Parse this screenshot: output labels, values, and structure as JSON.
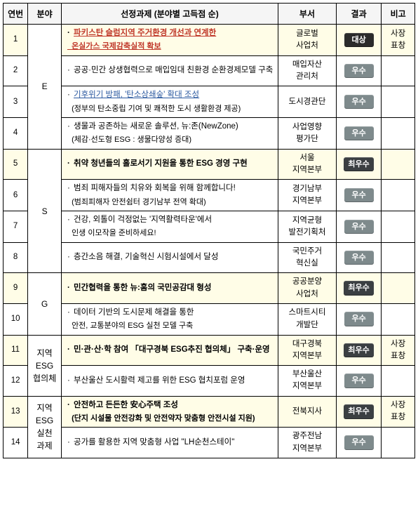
{
  "headers": {
    "no": "연번",
    "field": "분야",
    "task": "선정과제 (분야별 고득점 순)",
    "dept": "부서",
    "result": "결과",
    "note": "비고"
  },
  "col_widths": {
    "no": 34,
    "field": 46,
    "task": 298,
    "dept": 80,
    "result": 62,
    "note": 46
  },
  "badge_styles": {
    "대상": {
      "bg": "#2b2b2b",
      "class": "badge-dark"
    },
    "최우수": {
      "bg": "#3b3f42",
      "class": "badge-strong"
    },
    "우수": {
      "bg": "#7e8a8c",
      "class": "badge-gray"
    }
  },
  "field_groups": [
    {
      "label": "E",
      "span": 4
    },
    {
      "label": "S",
      "span": 4
    },
    {
      "label": "G",
      "span": 2
    },
    {
      "label": "지역\nESG\n협의체",
      "span": 2
    },
    {
      "label": "지역\nESG\n실천\n과제",
      "span": 2
    }
  ],
  "rows": [
    {
      "no": 1,
      "highlight": true,
      "task_prefix": "·",
      "task_main": "파키스탄 슬럼지역 주거환경 개선과 연계한",
      "task_sub": "온실가스 국제감축실적 확보",
      "task_main_class": "link-red",
      "task_sub_class": "link-red bold-sub",
      "dept": "글로벌\n사업처",
      "result": "대상",
      "note": "사장\n표창"
    },
    {
      "no": 2,
      "highlight": false,
      "task_prefix": "·",
      "task_main": "공공·민간 상생협력으로 매입임대 친환경 순환경제모델 구축",
      "dept": "매입자산\n관리처",
      "result": "우수"
    },
    {
      "no": 3,
      "highlight": false,
      "task_prefix": "·",
      "task_main": "기후위기 방패, '탄소상쇄숲' 확대 조성",
      "task_main_class": "link-blue",
      "task_sub": "(정부의 탄소중립 기여 및 쾌적한 도시 생활환경 제공)",
      "dept": "도시경관단",
      "result": "우수"
    },
    {
      "no": 4,
      "highlight": false,
      "task_prefix": "·",
      "task_main": "생물과 공존하는 새로운 솔루션, 뉴:존(NewZone)",
      "task_sub": "(체감·선도형 ESG : 생물다양성 증대)",
      "dept": "사업영향\n평가단",
      "result": "우수"
    },
    {
      "no": 5,
      "highlight": true,
      "task_prefix": "·",
      "task_main": "취약 청년들의 홀로서기 지원을 통한 ESG 경영 구현",
      "dept": "서울\n지역본부",
      "result": "최우수"
    },
    {
      "no": 6,
      "highlight": false,
      "task_prefix": "·",
      "task_main": "범죄 피해자들의 치유와 회복을 위해 함께합니다!",
      "task_sub": "(범죄피해자 안전쉼터 경기남부 전역 확대)",
      "dept": "경기남부\n지역본부",
      "result": "우수"
    },
    {
      "no": 7,
      "highlight": false,
      "task_prefix": "·",
      "task_main": "건강, 외톨이 걱정없는 '지역활력타운'에서",
      "task_sub": "인생 이모작을 준비하세요!",
      "dept": "지역균형\n발전기획처",
      "result": "우수"
    },
    {
      "no": 8,
      "highlight": false,
      "task_prefix": "·",
      "task_main": "층간소음 해결, 기술혁신 시험시설에서 달성",
      "dept": "국민주거\n혁신실",
      "result": "우수"
    },
    {
      "no": 9,
      "highlight": true,
      "task_prefix": "·",
      "task_main": "민간협력을 통한 뉴:홈의 국민공감대 형성",
      "dept": "공공분양\n사업처",
      "result": "최우수"
    },
    {
      "no": 10,
      "highlight": false,
      "task_prefix": "·",
      "task_main": "데이터 기반의 도시문제 해결을 통한",
      "task_sub": "안전, 교통분야의 ESG 실천 모델 구축",
      "dept": "스마트시티\n개발단",
      "result": "우수"
    },
    {
      "no": 11,
      "highlight": true,
      "task_prefix": "·",
      "task_main": "민·관·산·학 참여 「대구경북 ESG추진 협의체」 구축·운영",
      "dept": "대구경북\n지역본부",
      "result": "최우수",
      "note": "사장\n표창"
    },
    {
      "no": 12,
      "highlight": false,
      "task_prefix": "·",
      "task_main": "부산울산 도시활력 제고를 위한 ESG 협치포럼 운영",
      "dept": "부산울산\n지역본부",
      "result": "우수"
    },
    {
      "no": 13,
      "highlight": true,
      "task_prefix": "·",
      "task_main": "안전하고 든든한 安心주택 조성",
      "task_sub": "(단지 시설물 안전강화 및 안전약자 맞춤형 안전시설 지원)",
      "task_sub_class": "bold-sub",
      "dept": "전북지사",
      "result": "최우수",
      "note": "사장\n표창"
    },
    {
      "no": 14,
      "highlight": false,
      "task_prefix": "·",
      "task_main": "공가를 활용한 지역 맞춤형 사업 \"LH순천스테이\"",
      "dept": "광주전남\n지역본부",
      "result": "우수"
    }
  ]
}
